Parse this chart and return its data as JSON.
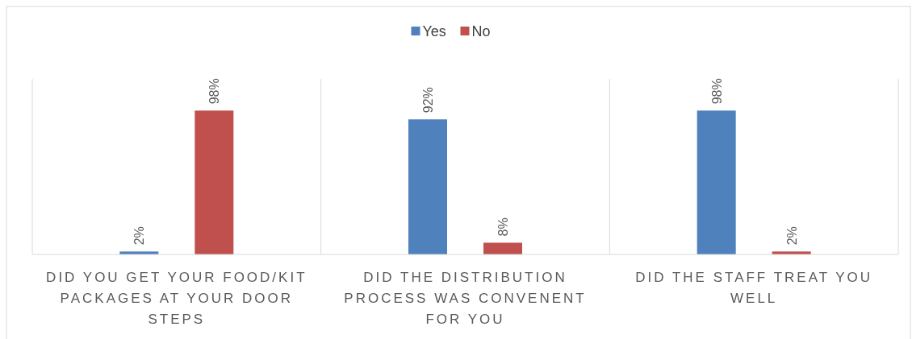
{
  "chart_data": {
    "type": "bar",
    "categories": [
      "DID YOU GET YOUR FOOD/KIT PACKAGES AT YOUR DOOR STEPS",
      "DID THE DISTRIBUTION PROCESS WAS CONVENENT FOR YOU",
      "DID THE STAFF TREAT YOU WELL"
    ],
    "series": [
      {
        "name": "Yes",
        "color": "#4f81bd",
        "values": [
          2,
          92,
          98
        ],
        "value_labels": [
          "2%",
          "92%",
          "98%"
        ]
      },
      {
        "name": "No",
        "color": "#c0504d",
        "values": [
          98,
          8,
          2
        ],
        "value_labels": [
          "98%",
          "8%",
          "2%"
        ]
      }
    ],
    "legend": "top",
    "grid": "x"
  }
}
